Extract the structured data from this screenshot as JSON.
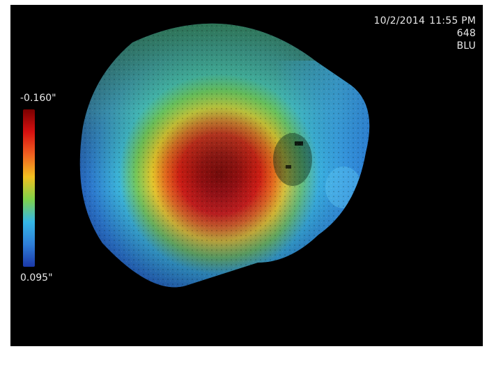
{
  "header": {
    "date": "10/2/2014",
    "time": "11:55 PM",
    "id": "648",
    "code": "BLU"
  },
  "colorbar": {
    "max_label": "-0.160\"",
    "min_label": "0.095\"",
    "gradient_colors": [
      "#7a0000",
      "#d61010",
      "#f06020",
      "#f2c020",
      "#7fd24a",
      "#35b7e6",
      "#2f7fd8",
      "#1b38a8"
    ]
  },
  "colors": {
    "background": "#000000",
    "page": "#ffffff",
    "text": "#e8e8e8"
  }
}
